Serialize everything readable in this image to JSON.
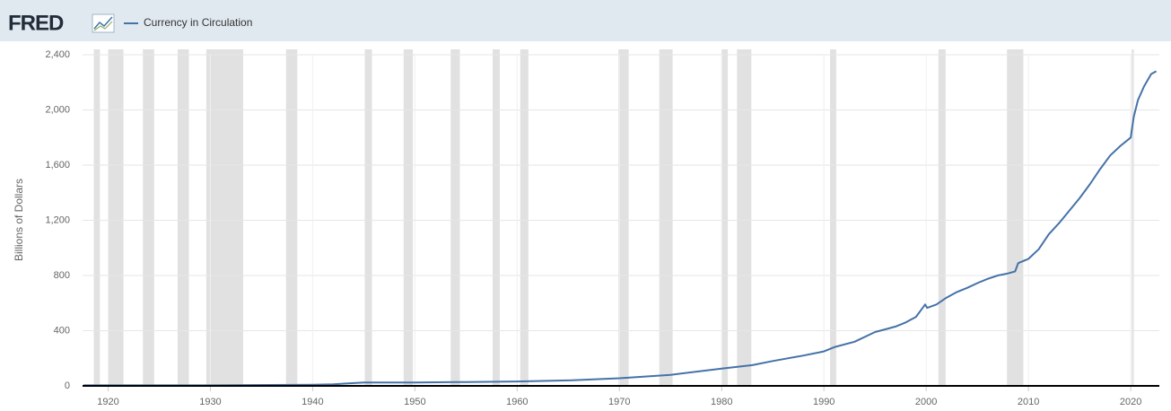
{
  "chart_data": {
    "type": "line",
    "logo": "FRED",
    "ylabel": "Billions of Dollars",
    "x": [
      1917.6,
      1930,
      1940,
      1942,
      1945,
      1950,
      1955,
      1960,
      1965,
      1970,
      1975,
      1980,
      1983,
      1985,
      1988,
      1990,
      1991,
      1993,
      1995,
      1996,
      1997,
      1998,
      1999,
      1999.9,
      2000.1,
      2001,
      2002,
      2003,
      2004,
      2005,
      2006,
      2007,
      2008,
      2008.7,
      2009,
      2010,
      2011,
      2012,
      2013,
      2014,
      2015,
      2016,
      2017,
      2018,
      2019,
      2020,
      2020.3,
      2020.7,
      2021.3,
      2022,
      2022.5
    ],
    "series": [
      {
        "name": "Currency in Circulation",
        "color": "#4572a7",
        "values": [
          4,
          4,
          8,
          12,
          25,
          25,
          28,
          32,
          40,
          55,
          80,
          125,
          150,
          180,
          220,
          250,
          280,
          320,
          390,
          410,
          430,
          460,
          500,
          590,
          565,
          590,
          640,
          680,
          710,
          745,
          775,
          800,
          815,
          830,
          890,
          920,
          990,
          1100,
          1180,
          1270,
          1360,
          1460,
          1570,
          1670,
          1740,
          1800,
          1950,
          2070,
          2170,
          2260,
          2280
        ]
      }
    ],
    "xlim": [
      1917.5,
      2022.8
    ],
    "xticks": [
      1920,
      1930,
      1940,
      1950,
      1960,
      1970,
      1980,
      1990,
      2000,
      2010,
      2020
    ],
    "ylim": [
      0,
      2400
    ],
    "yticks": [
      0,
      400,
      800,
      {
        "value": 1200,
        "label": "1,200"
      },
      {
        "value": 1600,
        "label": "1,600"
      },
      {
        "value": 2000,
        "label": "2,000"
      },
      {
        "value": 2400,
        "label": "2,400"
      }
    ],
    "grid": true,
    "recession_color": "#e1e1e1",
    "recessions": [
      [
        1918.6,
        1919.2
      ],
      [
        1920.0,
        1921.5
      ],
      [
        1923.4,
        1924.5
      ],
      [
        1926.8,
        1927.9
      ],
      [
        1929.6,
        1933.2
      ],
      [
        1937.4,
        1938.5
      ],
      [
        1945.1,
        1945.8
      ],
      [
        1948.9,
        1949.8
      ],
      [
        1953.5,
        1954.4
      ],
      [
        1957.6,
        1958.3
      ],
      [
        1960.3,
        1961.1
      ],
      [
        1969.9,
        1970.9
      ],
      [
        1973.9,
        1975.2
      ],
      [
        1980.0,
        1980.6
      ],
      [
        1981.5,
        1982.9
      ],
      [
        1990.6,
        1991.2
      ],
      [
        2001.2,
        2001.9
      ],
      [
        2007.9,
        2009.5
      ],
      [
        2020.1,
        2020.3
      ]
    ]
  }
}
